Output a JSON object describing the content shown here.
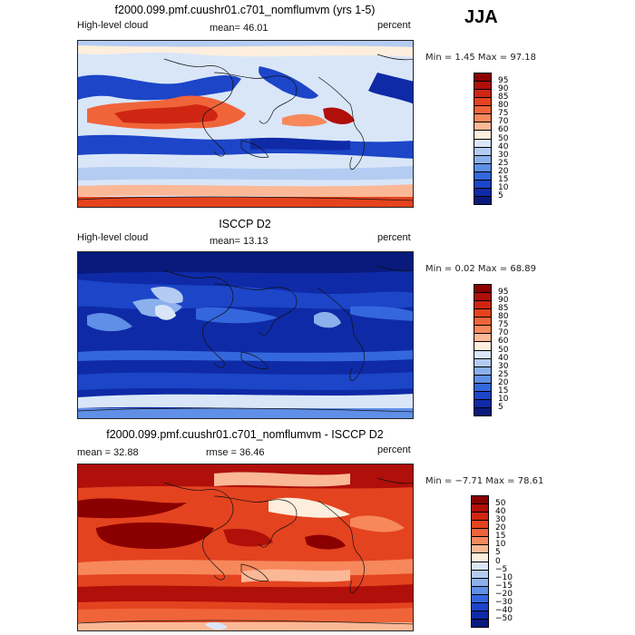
{
  "season": "JJA",
  "panels": [
    {
      "title": "f2000.099.pmf.cuushr01.c701_nomflumvm (yrs 1-5)",
      "left_label": "High-level cloud",
      "mean_text": "mean=  46.01",
      "units": "percent",
      "minmax": "Min =    1.45  Max =   97.18",
      "palette": "model"
    },
    {
      "title": "ISCCP D2",
      "left_label": "High-level cloud",
      "mean_text": "mean=  13.13",
      "units": "percent",
      "minmax": "Min =   0.02  Max =  68.89",
      "palette": "obs"
    },
    {
      "title": "f2000.099.pmf.cuushr01.c701_nomflumvm - ISCCP D2",
      "left_label": "mean =   32.88",
      "mean_text": "rmse =   36.46",
      "units": "percent",
      "minmax": "Min =  −7.71  Max =   78.61",
      "palette": "diff"
    }
  ],
  "colorbar_levels_abs": [
    "95",
    "90",
    "85",
    "80",
    "75",
    "70",
    "60",
    "50",
    "40",
    "30",
    "25",
    "20",
    "15",
    "10",
    "5"
  ],
  "colorbar_levels_diff": [
    "50",
    "40",
    "30",
    "20",
    "15",
    "10",
    "5",
    "0",
    "−5",
    "−10",
    "−15",
    "−20",
    "−30",
    "−40",
    "−50"
  ],
  "colors_abs": [
    "#8a0000",
    "#b00f0a",
    "#cf2613",
    "#e4431f",
    "#f0643a",
    "#f7885c",
    "#fbb897",
    "#fdeedd",
    "#d9e6f8",
    "#b4ccf2",
    "#8cb0ec",
    "#5f8fe6",
    "#3467dd",
    "#1c45c8",
    "#0e2aa6",
    "#081a7c"
  ],
  "colors_diff": [
    "#8a0000",
    "#b00f0a",
    "#cf2613",
    "#e4431f",
    "#f0643a",
    "#f7885c",
    "#fbb897",
    "#fdeedd",
    "#d9e6f8",
    "#b4ccf2",
    "#8cb0ec",
    "#5f8fe6",
    "#3467dd",
    "#1c45c8",
    "#0e2aa6",
    "#081a7c"
  ]
}
